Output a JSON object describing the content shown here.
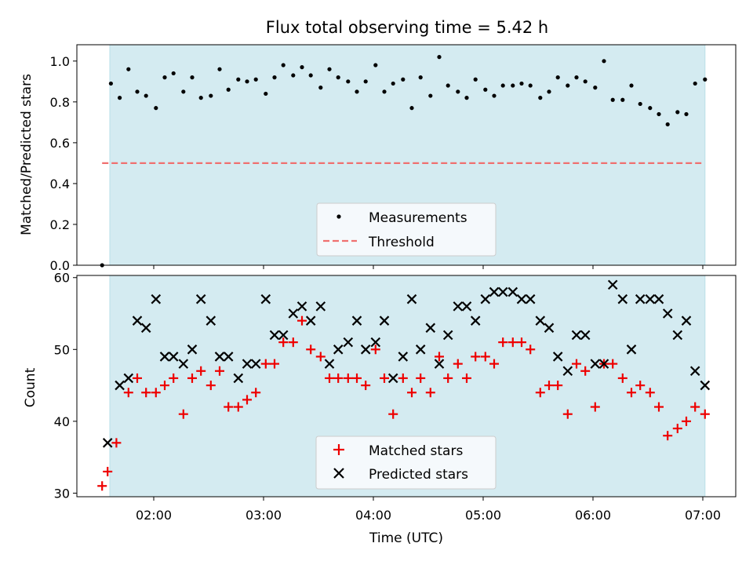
{
  "title": "Flux total observing time = 5.42 h",
  "chart_data": [
    {
      "type": "scatter",
      "ylabel": "Matched/Predicted stars",
      "ylim": [
        0,
        1.08
      ],
      "yticks": [
        0.0,
        0.2,
        0.4,
        0.6,
        0.8,
        1.0
      ],
      "ytick_labels": [
        "0.0",
        "0.2",
        "0.4",
        "0.6",
        "0.8",
        "1.0"
      ],
      "xlim_hours": [
        1.3,
        7.3
      ],
      "shaded_span_hours": [
        1.6,
        7.02
      ],
      "legend": [
        "Measurements",
        "Threshold"
      ],
      "series": [
        {
          "name": "Measurements",
          "color": "#000000",
          "x_hours": [
            1.53,
            1.61,
            1.69,
            1.77,
            1.85,
            1.93,
            2.02,
            2.1,
            2.18,
            2.27,
            2.35,
            2.43,
            2.52,
            2.6,
            2.68,
            2.77,
            2.85,
            2.93,
            3.02,
            3.1,
            3.18,
            3.27,
            3.35,
            3.43,
            3.52,
            3.6,
            3.68,
            3.77,
            3.85,
            3.93,
            4.02,
            4.1,
            4.18,
            4.27,
            4.35,
            4.43,
            4.52,
            4.6,
            4.68,
            4.77,
            4.85,
            4.93,
            5.02,
            5.1,
            5.18,
            5.27,
            5.35,
            5.43,
            5.52,
            5.6,
            5.68,
            5.77,
            5.85,
            5.93,
            6.02,
            6.1,
            6.18,
            6.27,
            6.35,
            6.43,
            6.52,
            6.6,
            6.68,
            6.77,
            6.85,
            6.93,
            7.02
          ],
          "y": [
            0.0,
            0.89,
            0.82,
            0.96,
            0.85,
            0.83,
            0.77,
            0.92,
            0.94,
            0.85,
            0.92,
            0.82,
            0.83,
            0.96,
            0.86,
            0.91,
            0.9,
            0.91,
            0.84,
            0.92,
            0.98,
            0.93,
            0.97,
            0.93,
            0.87,
            0.96,
            0.92,
            0.9,
            0.85,
            0.9,
            0.98,
            0.85,
            0.89,
            0.91,
            0.77,
            0.92,
            0.83,
            1.02,
            0.88,
            0.85,
            0.82,
            0.91,
            0.86,
            0.83,
            0.88,
            0.88,
            0.89,
            0.88,
            0.82,
            0.85,
            0.92,
            0.88,
            0.92,
            0.9,
            0.87,
            1.0,
            0.81,
            0.81,
            0.88,
            0.79,
            0.77,
            0.74,
            0.69,
            0.75,
            0.74,
            0.89,
            0.91
          ]
        },
        {
          "name": "Threshold",
          "color": "#f07070",
          "style": "dashed",
          "x_hours": [
            1.53,
            7.0
          ],
          "y": [
            0.5,
            0.5
          ]
        }
      ]
    },
    {
      "type": "scatter",
      "xlabel": "Time (UTC)",
      "ylabel": "Count",
      "ylim": [
        29.5,
        60.3
      ],
      "yticks": [
        30,
        40,
        50,
        60
      ],
      "ytick_labels": [
        "30",
        "40",
        "50",
        "60"
      ],
      "xlim_hours": [
        1.3,
        7.3
      ],
      "xticks_hours": [
        2,
        3,
        4,
        5,
        6,
        7
      ],
      "xtick_labels": [
        "02:00",
        "03:00",
        "04:00",
        "05:00",
        "06:00",
        "07:00"
      ],
      "shaded_span_hours": [
        1.6,
        7.02
      ],
      "legend": [
        "Matched stars",
        "Predicted stars"
      ],
      "series": [
        {
          "name": "Matched stars",
          "marker": "+",
          "color": "#ee0000",
          "x_hours": [
            1.53,
            1.58,
            1.66,
            1.77,
            1.85,
            1.93,
            2.02,
            2.1,
            2.18,
            2.27,
            2.35,
            2.43,
            2.52,
            2.6,
            2.68,
            2.77,
            2.85,
            2.93,
            3.02,
            3.1,
            3.18,
            3.27,
            3.35,
            3.43,
            3.52,
            3.6,
            3.68,
            3.77,
            3.85,
            3.93,
            4.02,
            4.1,
            4.18,
            4.27,
            4.35,
            4.43,
            4.52,
            4.6,
            4.68,
            4.77,
            4.85,
            4.93,
            5.02,
            5.1,
            5.18,
            5.27,
            5.35,
            5.43,
            5.52,
            5.6,
            5.68,
            5.77,
            5.85,
            5.93,
            6.02,
            6.1,
            6.18,
            6.27,
            6.35,
            6.43,
            6.52,
            6.6,
            6.68,
            6.77,
            6.85,
            6.93,
            7.02
          ],
          "y": [
            31,
            33,
            37,
            44,
            46,
            44,
            44,
            45,
            46,
            41,
            46,
            47,
            45,
            47,
            42,
            42,
            43,
            44,
            48,
            48,
            51,
            51,
            54,
            50,
            49,
            46,
            46,
            46,
            46,
            45,
            50,
            46,
            41,
            46,
            44,
            46,
            44,
            49,
            46,
            48,
            46,
            49,
            49,
            48,
            51,
            51,
            51,
            50,
            44,
            45,
            45,
            41,
            48,
            47,
            42,
            48,
            48,
            46,
            44,
            45,
            44,
            42,
            38,
            39,
            40,
            42,
            41
          ]
        },
        {
          "name": "Predicted stars",
          "marker": "x",
          "color": "#000000",
          "x_hours": [
            1.58,
            1.69,
            1.77,
            1.85,
            1.93,
            2.02,
            2.1,
            2.18,
            2.27,
            2.35,
            2.43,
            2.52,
            2.6,
            2.68,
            2.77,
            2.85,
            2.93,
            3.02,
            3.1,
            3.18,
            3.27,
            3.35,
            3.43,
            3.52,
            3.6,
            3.68,
            3.77,
            3.85,
            3.93,
            4.02,
            4.1,
            4.18,
            4.27,
            4.35,
            4.43,
            4.52,
            4.6,
            4.68,
            4.77,
            4.85,
            4.93,
            5.02,
            5.1,
            5.18,
            5.27,
            5.35,
            5.43,
            5.52,
            5.6,
            5.68,
            5.77,
            5.85,
            5.93,
            6.02,
            6.1,
            6.18,
            6.27,
            6.35,
            6.43,
            6.52,
            6.6,
            6.68,
            6.77,
            6.85,
            6.93,
            7.02
          ],
          "y": [
            37,
            45,
            46,
            54,
            53,
            57,
            49,
            49,
            48,
            50,
            57,
            54,
            49,
            49,
            46,
            48,
            48,
            57,
            52,
            52,
            55,
            56,
            54,
            56,
            48,
            50,
            51,
            54,
            50,
            51,
            54,
            46,
            49,
            57,
            50,
            53,
            48,
            52,
            56,
            56,
            54,
            57,
            58,
            58,
            58,
            57,
            57,
            54,
            53,
            49,
            47,
            52,
            52,
            48,
            48,
            59,
            57,
            50,
            57,
            57,
            57,
            55,
            52,
            54,
            47,
            45
          ]
        }
      ]
    }
  ]
}
